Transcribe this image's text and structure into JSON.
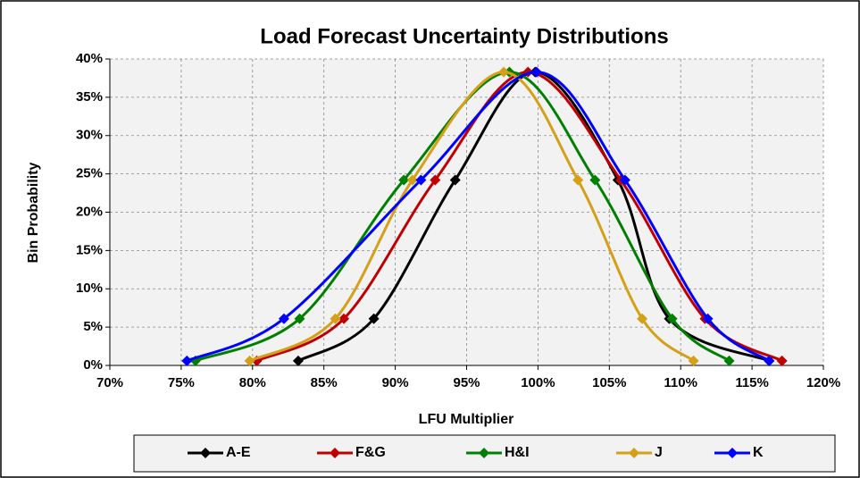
{
  "chart_data": {
    "type": "line",
    "title": "Load Forecast Uncertainty Distributions",
    "x_label": "LFU Multiplier",
    "y_label": "Bin Probability",
    "xlim": [
      70,
      120
    ],
    "ylim": [
      0,
      40
    ],
    "xticks": [
      {
        "value": 70,
        "label": "70%"
      },
      {
        "value": 75,
        "label": "75%"
      },
      {
        "value": 80,
        "label": "80%"
      },
      {
        "value": 85,
        "label": "85%"
      },
      {
        "value": 90,
        "label": "90%"
      },
      {
        "value": 95,
        "label": "95%"
      },
      {
        "value": 100,
        "label": "100%"
      },
      {
        "value": 105,
        "label": "105%"
      },
      {
        "value": 110,
        "label": "110%"
      },
      {
        "value": 115,
        "label": "115%"
      },
      {
        "value": 120,
        "label": "120%"
      }
    ],
    "yticks": [
      {
        "value": 0,
        "label": "0%"
      },
      {
        "value": 5,
        "label": "5%"
      },
      {
        "value": 10,
        "label": "10%"
      },
      {
        "value": 15,
        "label": "15%"
      },
      {
        "value": 20,
        "label": "20%"
      },
      {
        "value": 25,
        "label": "25%"
      },
      {
        "value": 30,
        "label": "30%"
      },
      {
        "value": 35,
        "label": "35%"
      },
      {
        "value": 40,
        "label": "40%"
      }
    ],
    "grid": true,
    "legend": "bottom",
    "series": [
      {
        "name": "A-E",
        "color": "#000000",
        "x": [
          83.2,
          88.5,
          94.2,
          99.8,
          105.6,
          109.2,
          116.2
        ],
        "values": [
          0.6,
          6.1,
          24.2,
          38.3,
          24.2,
          6.1,
          0.6
        ]
      },
      {
        "name": "F&G",
        "color": "#c00000",
        "x": [
          80.3,
          86.4,
          92.8,
          99.3,
          105.8,
          111.7,
          117.1
        ],
        "values": [
          0.6,
          6.1,
          24.2,
          38.3,
          24.2,
          6.1,
          0.6
        ]
      },
      {
        "name": "H&I",
        "color": "#008000",
        "x": [
          76.0,
          83.3,
          90.6,
          98.0,
          104.0,
          109.4,
          113.4
        ],
        "values": [
          0.6,
          6.1,
          24.2,
          38.3,
          24.2,
          6.1,
          0.6
        ]
      },
      {
        "name": "J",
        "color": "#d4a017",
        "x": [
          79.8,
          85.8,
          91.2,
          97.6,
          102.8,
          107.3,
          110.9
        ],
        "values": [
          0.6,
          6.1,
          24.2,
          38.3,
          24.2,
          6.1,
          0.6
        ]
      },
      {
        "name": "K",
        "color": "#0000ff",
        "x": [
          75.4,
          82.2,
          91.8,
          99.9,
          106.1,
          111.9,
          116.2
        ],
        "values": [
          0.6,
          6.1,
          24.2,
          38.3,
          24.2,
          6.1,
          0.6
        ]
      }
    ]
  }
}
